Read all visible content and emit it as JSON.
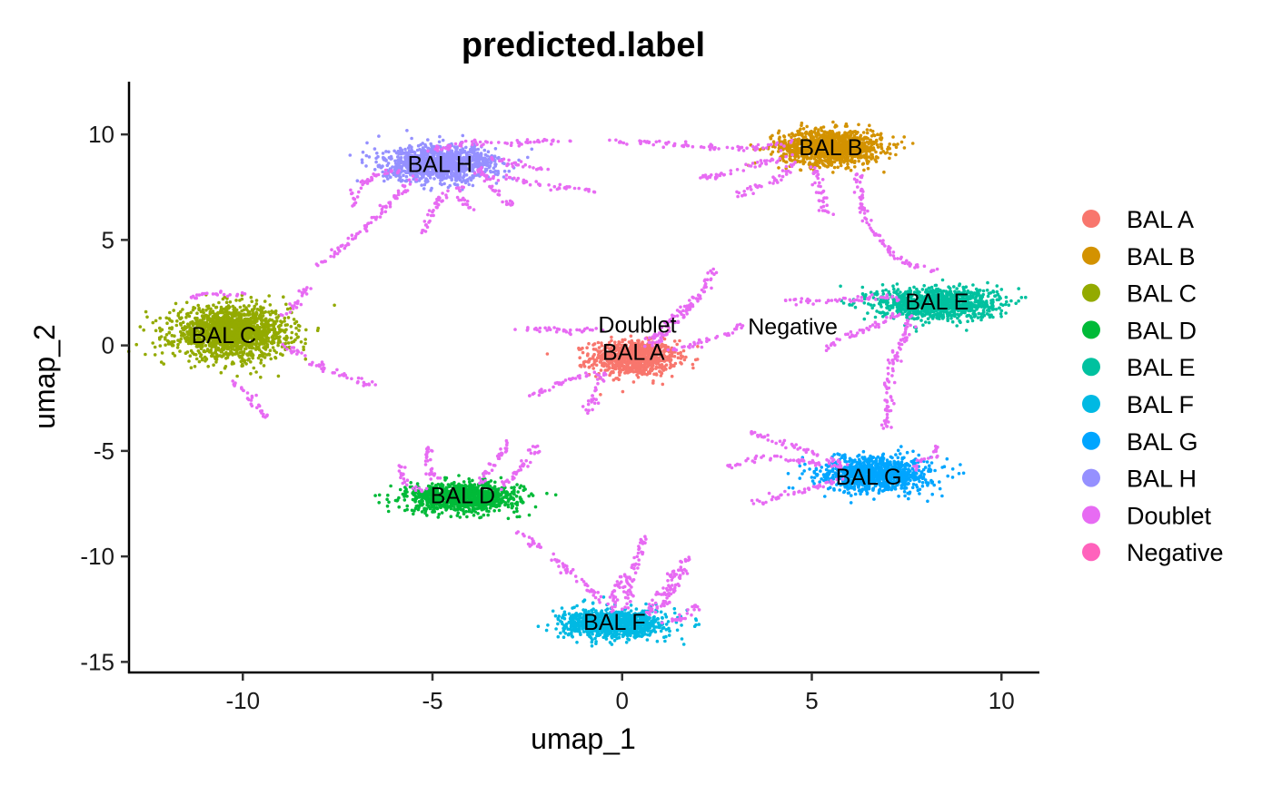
{
  "chart_data": {
    "type": "scatter",
    "title": "predicted.label",
    "xlabel": "umap_1",
    "ylabel": "umap_2",
    "xlim": [
      -13,
      11
    ],
    "ylim": [
      -15.5,
      12.5
    ],
    "xticks": [
      -10,
      -5,
      0,
      5,
      10
    ],
    "xtick_labels": [
      "-10",
      "-5",
      "0",
      "5",
      "10"
    ],
    "yticks": [
      -15,
      -10,
      -5,
      0,
      5,
      10
    ],
    "ytick_labels": [
      "-15",
      "-10",
      "-5",
      "0",
      "5",
      "10"
    ],
    "grid": false,
    "legend_position": "right",
    "legend": [
      {
        "name": "BAL A",
        "color": "#F8766D"
      },
      {
        "name": "BAL B",
        "color": "#D39200"
      },
      {
        "name": "BAL C",
        "color": "#93AA00"
      },
      {
        "name": "BAL D",
        "color": "#00BA38"
      },
      {
        "name": "BAL E",
        "color": "#00C19F"
      },
      {
        "name": "BAL F",
        "color": "#00B9E3"
      },
      {
        "name": "BAL G",
        "color": "#00A5FF"
      },
      {
        "name": "BAL H",
        "color": "#9590FF"
      },
      {
        "name": "Doublet",
        "color": "#E76BF3"
      },
      {
        "name": "Negative",
        "color": "#FF62BC"
      }
    ],
    "cluster_labels": [
      {
        "text": "BAL H",
        "x": -4.8,
        "y": 8.6
      },
      {
        "text": "BAL B",
        "x": 5.5,
        "y": 9.4
      },
      {
        "text": "BAL E",
        "x": 8.3,
        "y": 2.1
      },
      {
        "text": "BAL C",
        "x": -10.5,
        "y": 0.5
      },
      {
        "text": "Doublet",
        "x": 0.4,
        "y": 1.0
      },
      {
        "text": "BAL A",
        "x": 0.3,
        "y": -0.3
      },
      {
        "text": "Negative",
        "x": 4.5,
        "y": 0.9
      },
      {
        "text": "BAL D",
        "x": -4.2,
        "y": -7.1
      },
      {
        "text": "BAL G",
        "x": 6.5,
        "y": -6.2
      },
      {
        "text": "BAL F",
        "x": -0.2,
        "y": -13.1
      }
    ],
    "clusters": [
      {
        "name": "BAL A",
        "cx": 0.3,
        "cy": -0.6,
        "sx": 0.75,
        "sy": 0.55,
        "n": 900
      },
      {
        "name": "BAL B",
        "cx": 5.5,
        "cy": 9.4,
        "sx": 0.9,
        "sy": 0.55,
        "n": 1200
      },
      {
        "name": "BAL C",
        "cx": -10.3,
        "cy": 0.6,
        "sx": 1.0,
        "sy": 0.8,
        "n": 1600
      },
      {
        "name": "BAL D",
        "cx": -4.2,
        "cy": -7.2,
        "sx": 1.0,
        "sy": 0.45,
        "n": 1000
      },
      {
        "name": "BAL E",
        "cx": 8.3,
        "cy": 2.0,
        "sx": 1.05,
        "sy": 0.5,
        "n": 1100
      },
      {
        "name": "BAL F",
        "cx": -0.2,
        "cy": -13.2,
        "sx": 0.9,
        "sy": 0.45,
        "n": 1000
      },
      {
        "name": "BAL G",
        "cx": 6.7,
        "cy": -6.1,
        "sx": 0.95,
        "sy": 0.55,
        "n": 1000
      },
      {
        "name": "BAL H",
        "cx": -4.8,
        "cy": 8.6,
        "sx": 1.0,
        "sy": 0.55,
        "n": 1200
      }
    ],
    "doublet_paths": [
      [
        [
          -5.2,
          9.2
        ],
        [
          -3.9,
          9.6
        ],
        [
          -2.6,
          9.6
        ],
        [
          -1.4,
          9.7
        ]
      ],
      [
        [
          -3.8,
          8.2
        ],
        [
          -2.7,
          7.8
        ],
        [
          -1.7,
          7.5
        ],
        [
          -0.7,
          7.3
        ]
      ],
      [
        [
          -3.8,
          8.4
        ],
        [
          -3.3,
          7.3
        ],
        [
          -2.9,
          6.5
        ]
      ],
      [
        [
          -3.6,
          9.0
        ],
        [
          -2.8,
          8.6
        ],
        [
          -2.0,
          8.3
        ]
      ],
      [
        [
          -5.8,
          8.3
        ],
        [
          -6.6,
          8.0
        ],
        [
          -7.1,
          7.3
        ],
        [
          -7.0,
          6.6
        ]
      ],
      [
        [
          -5.4,
          8.0
        ],
        [
          -6.2,
          6.6
        ],
        [
          -7.0,
          5.2
        ],
        [
          -7.5,
          4.5
        ],
        [
          -8.0,
          3.8
        ]
      ],
      [
        [
          -4.6,
          7.4
        ],
        [
          -5.0,
          6.4
        ],
        [
          -5.2,
          5.4
        ]
      ],
      [
        [
          -4.3,
          7.5
        ],
        [
          -4.2,
          6.9
        ],
        [
          -4.0,
          6.4
        ]
      ],
      [
        [
          -8.9,
          0.0
        ],
        [
          -8.0,
          -1.0
        ],
        [
          -7.2,
          -1.5
        ],
        [
          -6.5,
          -1.9
        ]
      ],
      [
        [
          -10.2,
          -1.7
        ],
        [
          -9.8,
          -2.6
        ],
        [
          -9.4,
          -3.4
        ]
      ],
      [
        [
          -11.5,
          2.2
        ],
        [
          -10.9,
          2.5
        ],
        [
          -10.0,
          2.4
        ]
      ],
      [
        [
          -9.0,
          1.3
        ],
        [
          -8.6,
          2.0
        ],
        [
          -8.3,
          2.8
        ]
      ],
      [
        [
          -0.5,
          0.7
        ],
        [
          -1.5,
          0.7
        ],
        [
          -2.7,
          0.8
        ]
      ],
      [
        [
          0.8,
          0.0
        ],
        [
          1.5,
          1.2
        ],
        [
          2.0,
          2.3
        ],
        [
          2.4,
          3.6
        ]
      ],
      [
        [
          0.6,
          0.0
        ],
        [
          1.0,
          0.7
        ],
        [
          1.5,
          1.5
        ],
        [
          2.0,
          2.2
        ]
      ],
      [
        [
          -0.7,
          -1.3
        ],
        [
          -1.7,
          -1.8
        ],
        [
          -2.5,
          -2.5
        ]
      ],
      [
        [
          -0.5,
          -1.3
        ],
        [
          -0.7,
          -2.3
        ],
        [
          -0.9,
          -3.2
        ]
      ],
      [
        [
          1.2,
          -0.2
        ],
        [
          2.0,
          0.1
        ],
        [
          2.8,
          0.6
        ],
        [
          3.2,
          1.0
        ]
      ],
      [
        [
          4.5,
          9.6
        ],
        [
          3.3,
          9.3
        ],
        [
          2.2,
          9.4
        ],
        [
          1.0,
          9.6
        ],
        [
          -0.2,
          9.7
        ]
      ],
      [
        [
          4.5,
          9.0
        ],
        [
          3.6,
          8.6
        ],
        [
          2.5,
          8.0
        ],
        [
          1.9,
          8.0
        ]
      ],
      [
        [
          4.6,
          8.7
        ],
        [
          4.1,
          7.9
        ],
        [
          3.3,
          7.3
        ],
        [
          3.0,
          7.0
        ]
      ],
      [
        [
          5.0,
          8.5
        ],
        [
          5.2,
          7.5
        ],
        [
          5.3,
          6.5
        ],
        [
          5.5,
          6.2
        ]
      ],
      [
        [
          6.2,
          8.2
        ],
        [
          6.3,
          6.8
        ],
        [
          6.5,
          5.6
        ],
        [
          7.0,
          4.5
        ],
        [
          7.6,
          3.8
        ],
        [
          8.3,
          3.5
        ]
      ],
      [
        [
          7.3,
          2.3
        ],
        [
          6.3,
          2.2
        ],
        [
          5.2,
          2.1
        ],
        [
          4.2,
          2.2
        ]
      ],
      [
        [
          7.4,
          1.6
        ],
        [
          6.5,
          0.8
        ],
        [
          5.6,
          0.2
        ],
        [
          5.3,
          -0.2
        ]
      ],
      [
        [
          7.6,
          1.5
        ],
        [
          7.5,
          0.5
        ],
        [
          7.2,
          -0.5
        ],
        [
          7.0,
          -1.8
        ],
        [
          7.0,
          -3.0
        ],
        [
          6.9,
          -4.0
        ]
      ],
      [
        [
          5.9,
          -5.8
        ],
        [
          4.8,
          -5.5
        ],
        [
          3.7,
          -5.3
        ],
        [
          2.8,
          -5.7
        ]
      ],
      [
        [
          5.8,
          -6.3
        ],
        [
          4.8,
          -6.9
        ],
        [
          4.0,
          -7.2
        ],
        [
          3.4,
          -7.5
        ]
      ],
      [
        [
          5.8,
          -5.7
        ],
        [
          4.9,
          -5.0
        ],
        [
          4.0,
          -4.5
        ],
        [
          3.3,
          -4.1
        ]
      ],
      [
        [
          7.6,
          -5.8
        ],
        [
          8.2,
          -5.2
        ],
        [
          8.3,
          -4.8
        ]
      ],
      [
        [
          -3.3,
          -6.8
        ],
        [
          -2.8,
          -6.1
        ],
        [
          -2.5,
          -5.5
        ],
        [
          -2.2,
          -4.8
        ]
      ],
      [
        [
          -3.8,
          -6.6
        ],
        [
          -3.5,
          -5.8
        ],
        [
          -3.1,
          -5.0
        ],
        [
          -3.0,
          -4.6
        ]
      ],
      [
        [
          -4.8,
          -6.6
        ],
        [
          -5.1,
          -5.7
        ],
        [
          -5.1,
          -4.8
        ]
      ],
      [
        [
          -5.2,
          -7.0
        ],
        [
          -5.7,
          -6.5
        ],
        [
          -5.9,
          -5.7
        ]
      ],
      [
        [
          -2.8,
          -8.8
        ],
        [
          -2.2,
          -9.5
        ],
        [
          -1.2,
          -11.0
        ],
        [
          -0.5,
          -12.2
        ]
      ],
      [
        [
          0.1,
          -12.6
        ],
        [
          0.2,
          -11.2
        ],
        [
          0.4,
          -10.0
        ],
        [
          0.6,
          -9.0
        ]
      ],
      [
        [
          -0.3,
          -12.6
        ],
        [
          -0.2,
          -11.7
        ],
        [
          0.0,
          -10.8
        ]
      ],
      [
        [
          0.6,
          -12.9
        ],
        [
          1.0,
          -11.8
        ],
        [
          1.5,
          -10.5
        ]
      ],
      [
        [
          1.0,
          -13.2
        ],
        [
          1.6,
          -12.9
        ],
        [
          2.0,
          -12.3
        ]
      ],
      [
        [
          0.9,
          -12.8
        ],
        [
          1.3,
          -11.6
        ],
        [
          1.6,
          -10.8
        ],
        [
          1.7,
          -10.0
        ]
      ]
    ]
  }
}
